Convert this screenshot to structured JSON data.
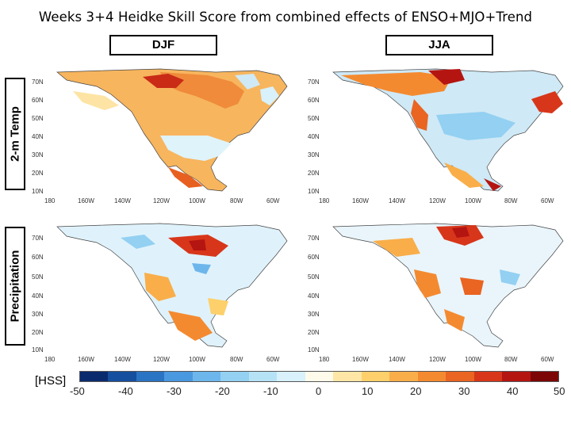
{
  "title": "Weeks 3+4 Heidke Skill Score from combined effects of ENSO+MJO+Trend",
  "seasons": [
    "DJF",
    "JJA"
  ],
  "rows": [
    "2-m Temp",
    "Precipitation"
  ],
  "lat_ticks": [
    "70N",
    "60N",
    "50N",
    "40N",
    "30N",
    "20N",
    "10N"
  ],
  "lon_ticks": [
    "180",
    "160W",
    "140W",
    "120W",
    "100W",
    "80W",
    "60W"
  ],
  "colorbar": {
    "unit_label": "[HSS]",
    "ticks": [
      "-50",
      "-40",
      "-30",
      "-20",
      "-10",
      "0",
      "10",
      "20",
      "30",
      "40",
      "50"
    ],
    "colors": [
      "#0a2a6e",
      "#154f9e",
      "#2b74c4",
      "#4a98df",
      "#6db6ec",
      "#93d0f2",
      "#b6e2f6",
      "#d8f1fa",
      "#fffbea",
      "#fee6a6",
      "#fdd06b",
      "#f9ae4a",
      "#f48a30",
      "#ea6422",
      "#d8361a",
      "#b51511",
      "#7c0606"
    ]
  },
  "colors": {
    "ocean": "#ffffff",
    "land_base_temp_djf": "#f7b55e",
    "land_base_temp_jja": "#cfe9f6",
    "land_base_precip_djf": "#dff2fb",
    "land_base_precip_jja": "#e9f5fb",
    "coast": "#444444"
  }
}
